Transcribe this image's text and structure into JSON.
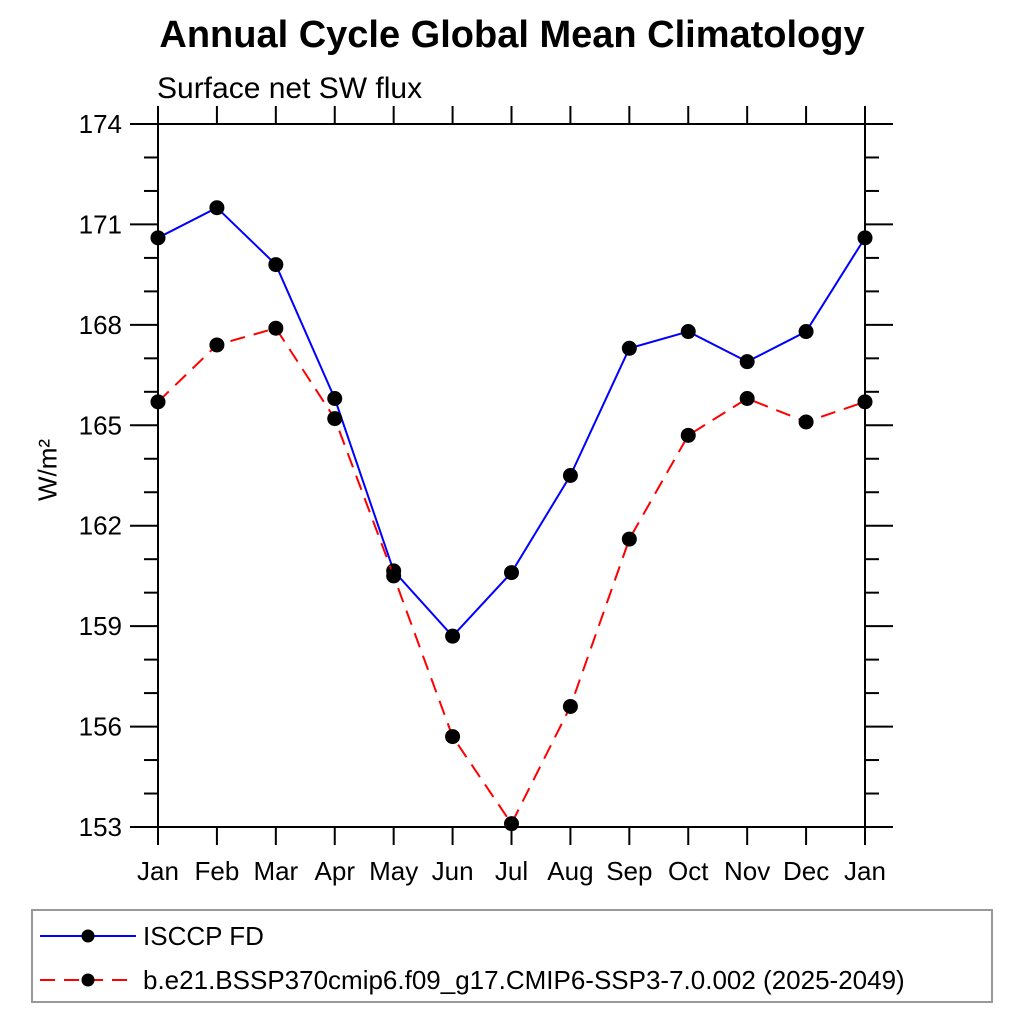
{
  "title": "Annual Cycle Global Mean Climatology",
  "chart_data": {
    "type": "line",
    "title": "Annual Cycle Global Mean Climatology",
    "subtitle": "Surface net SW flux",
    "xlabel": "",
    "ylabel": "W/m²",
    "ylim": [
      153,
      174
    ],
    "ytick_major_step": 3,
    "ytick_minor_step": 1,
    "ytick_labels": [
      "153",
      "156",
      "159",
      "162",
      "165",
      "168",
      "171",
      "174"
    ],
    "grid": false,
    "legend_position": "bottom-left-box",
    "categories": [
      "Jan",
      "Feb",
      "Mar",
      "Apr",
      "May",
      "Jun",
      "Jul",
      "Aug",
      "Sep",
      "Oct",
      "Nov",
      "Dec",
      "Jan"
    ],
    "series": [
      {
        "name": "ISCCP FD",
        "color": "#0000ff",
        "line_style": "solid",
        "marker": "filled-black-circle",
        "values": [
          170.6,
          171.5,
          169.8,
          165.8,
          160.65,
          158.7,
          160.6,
          163.5,
          167.3,
          167.8,
          166.9,
          167.8,
          170.6
        ]
      },
      {
        "name": "b.e21.BSSP370cmip6.f09_g17.CMIP6-SSP3-7.0.002 (2025-2049)",
        "color": "#ff0000",
        "line_style": "dashed",
        "marker": "filled-black-circle",
        "values": [
          165.7,
          167.4,
          167.9,
          165.2,
          160.5,
          155.7,
          153.1,
          156.6,
          161.6,
          164.7,
          165.8,
          165.1,
          165.7
        ]
      }
    ]
  },
  "colors": {
    "axis": "#000000",
    "marker": "#000000",
    "legend_border": "#999999",
    "background": "#ffffff"
  }
}
